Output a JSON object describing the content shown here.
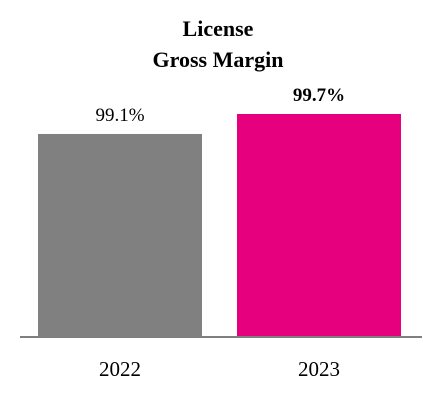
{
  "chart_data": {
    "type": "bar",
    "title_lines": [
      "License",
      "Gross Margin"
    ],
    "categories": [
      "2022",
      "2023"
    ],
    "values": [
      99.1,
      99.7
    ],
    "data_labels": [
      "99.1%",
      "99.7%"
    ],
    "bold_labels": [
      false,
      true
    ],
    "colors": [
      "#808080",
      "#e6007e"
    ],
    "baseline_color": "#7f7f7f",
    "xlabel": "",
    "ylabel": "",
    "ylim": [
      0,
      100
    ],
    "grid": false,
    "legend": "none"
  }
}
